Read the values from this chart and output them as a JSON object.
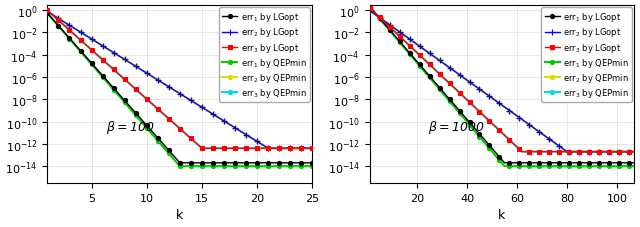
{
  "plot1": {
    "beta_num": "100",
    "xlim": [
      1,
      25
    ],
    "ylim": [
      3e-16,
      3
    ],
    "k_max": 25,
    "curves": {
      "black": {
        "start": 0.5,
        "floor": 2e-14,
        "k_conv": 13,
        "rate_factor": 1.0
      },
      "blue": {
        "start": 0.7,
        "floor": 4e-13,
        "k_conv": 21,
        "rate_factor": 1.0
      },
      "red": {
        "start": 0.9,
        "floor": 4e-13,
        "k_conv": 15,
        "rate_factor": 1.0
      },
      "green": {
        "start": 0.5,
        "floor": 1e-14,
        "k_conv": 13,
        "rate_factor": 1.0
      },
      "yellow": {
        "start": 0.7,
        "floor": 4e-13,
        "k_conv": 21,
        "rate_factor": 1.0
      },
      "cyan": {
        "start": 0.9,
        "floor": 4e-13,
        "k_conv": 15,
        "rate_factor": 1.0
      }
    }
  },
  "plot2": {
    "beta_num": "1000",
    "xlim": [
      1,
      107
    ],
    "ylim": [
      3e-16,
      3
    ],
    "k_max": 107,
    "curves": {
      "black": {
        "start": 2.0,
        "floor": 2e-14,
        "k_conv": 55,
        "rate_factor": 1.0
      },
      "blue": {
        "start": 0.9,
        "floor": 2e-13,
        "k_conv": 80,
        "rate_factor": 1.0
      },
      "red": {
        "start": 1.5,
        "floor": 2e-13,
        "k_conv": 62,
        "rate_factor": 1.0
      },
      "green": {
        "start": 2.0,
        "floor": 1e-14,
        "k_conv": 55,
        "rate_factor": 1.0
      },
      "yellow": {
        "start": 0.9,
        "floor": 2e-13,
        "k_conv": 80,
        "rate_factor": 1.0
      },
      "cyan": {
        "start": 1.5,
        "floor": 2e-13,
        "k_conv": 62,
        "rate_factor": 1.0
      }
    }
  },
  "legend_labels": [
    "err$_1$ by LGopt",
    "err$_2$ by LGopt",
    "err$_3$ by LGopt",
    "err$_1$ by QEPmin",
    "err$_2$ by QEPmin",
    "err$_3$ by QEPmin"
  ],
  "colors": [
    "#000000",
    "#0000ff",
    "#ff0000",
    "#00cc00",
    "#dddd00",
    "#00dddd"
  ],
  "markers": [
    "o",
    "+",
    "s",
    "o",
    "o",
    "o"
  ],
  "marker_sizes": [
    3,
    4,
    3,
    3,
    3,
    3
  ],
  "linewidths": [
    1.0,
    1.0,
    1.0,
    1.5,
    1.5,
    1.5
  ]
}
